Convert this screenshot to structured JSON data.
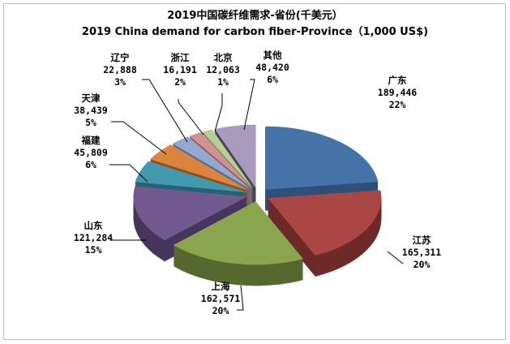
{
  "chart_data": {
    "type": "pie",
    "style": "3d-exploded",
    "title": "2019中国碳纤维需求-省份(千美元）",
    "subtitle": "2019 China demand for carbon fiber-Province（1,000 US$)",
    "slices": [
      {
        "name": "广东",
        "value": 189446,
        "value_label": "189,446",
        "percent": "22%",
        "color": "#4572A7",
        "side": "#2f4f78"
      },
      {
        "name": "江苏",
        "value": 165311,
        "value_label": "165,311",
        "percent": "20%",
        "color": "#AA4643",
        "side": "#6e2a28"
      },
      {
        "name": "上海",
        "value": 162571,
        "value_label": "162,571",
        "percent": "20%",
        "color": "#89A54E",
        "side": "#55692e"
      },
      {
        "name": "山东",
        "value": 121284,
        "value_label": "121,284",
        "percent": "15%",
        "color": "#71588F",
        "side": "#46365c"
      },
      {
        "name": "福建",
        "value": 45809,
        "value_label": "45,809",
        "percent": "6%",
        "color": "#4198AF",
        "side": "#276272"
      },
      {
        "name": "天津",
        "value": 38439,
        "value_label": "38,439",
        "percent": "5%",
        "color": "#DB843D",
        "side": "#8f5221"
      },
      {
        "name": "辽宁",
        "value": 22888,
        "value_label": "22,888",
        "percent": "3%",
        "color": "#93A9CF",
        "side": "#5d6f8f"
      },
      {
        "name": "浙江",
        "value": 16191,
        "value_label": "16,191",
        "percent": "2%",
        "color": "#D19392",
        "side": "#8b5b5a"
      },
      {
        "name": "北京",
        "value": 12063,
        "value_label": "12,063",
        "percent": "1%",
        "color": "#B9CD96",
        "side": "#7a8a5e"
      },
      {
        "name": "其他",
        "value": 48420,
        "value_label": "48,420",
        "percent": "6%",
        "color": "#A99BBD",
        "side": "#4a4258"
      }
    ]
  }
}
